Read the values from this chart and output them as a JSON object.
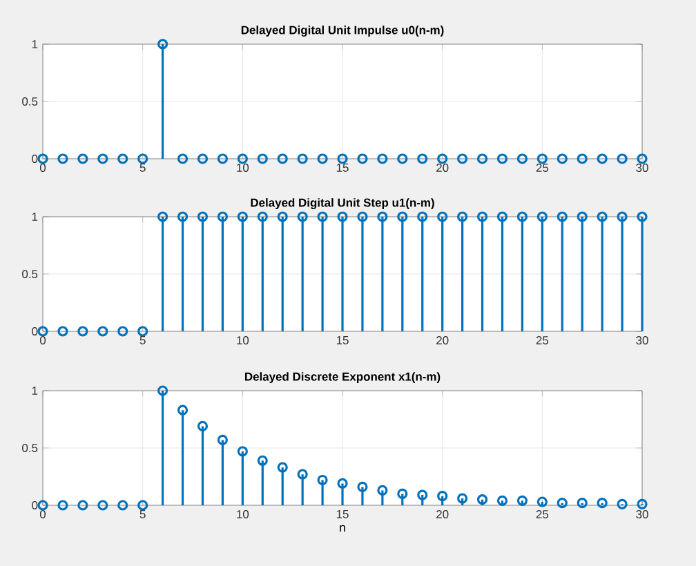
{
  "chart_data": [
    {
      "type": "lollipop",
      "title": "Delayed Digital Unit Impulse u0(n-m)",
      "x": [
        0,
        1,
        2,
        3,
        4,
        5,
        6,
        7,
        8,
        9,
        10,
        11,
        12,
        13,
        14,
        15,
        16,
        17,
        18,
        19,
        20,
        21,
        22,
        23,
        24,
        25,
        26,
        27,
        28,
        29,
        30
      ],
      "values": [
        0,
        0,
        0,
        0,
        0,
        0,
        1,
        0,
        0,
        0,
        0,
        0,
        0,
        0,
        0,
        0,
        0,
        0,
        0,
        0,
        0,
        0,
        0,
        0,
        0,
        0,
        0,
        0,
        0,
        0,
        0
      ],
      "color": "#0072bd",
      "marker": "circle",
      "grid": true,
      "xlim": [
        0,
        30
      ],
      "xticks": [
        0,
        5,
        10,
        15,
        20,
        25,
        30
      ],
      "ylim": [
        0,
        1
      ],
      "yticks": [
        0,
        0.5,
        1
      ]
    },
    {
      "type": "lollipop",
      "title": "Delayed Digital Unit Step u1(n-m)",
      "x": [
        0,
        1,
        2,
        3,
        4,
        5,
        6,
        7,
        8,
        9,
        10,
        11,
        12,
        13,
        14,
        15,
        16,
        17,
        18,
        19,
        20,
        21,
        22,
        23,
        24,
        25,
        26,
        27,
        28,
        29,
        30
      ],
      "values": [
        0,
        0,
        0,
        0,
        0,
        0,
        1,
        1,
        1,
        1,
        1,
        1,
        1,
        1,
        1,
        1,
        1,
        1,
        1,
        1,
        1,
        1,
        1,
        1,
        1,
        1,
        1,
        1,
        1,
        1,
        1
      ],
      "color": "#0072bd",
      "marker": "circle",
      "grid": true,
      "xlim": [
        0,
        30
      ],
      "xticks": [
        0,
        5,
        10,
        15,
        20,
        25,
        30
      ],
      "ylim": [
        0,
        1
      ],
      "yticks": [
        0,
        0.5,
        1
      ]
    },
    {
      "type": "lollipop",
      "title": "Delayed Discrete Exponent x1(n-m)",
      "xlabel": "n",
      "x": [
        0,
        1,
        2,
        3,
        4,
        5,
        6,
        7,
        8,
        9,
        10,
        11,
        12,
        13,
        14,
        15,
        16,
        17,
        18,
        19,
        20,
        21,
        22,
        23,
        24,
        25,
        26,
        27,
        28,
        29,
        30
      ],
      "values": [
        0,
        0,
        0,
        0,
        0,
        0,
        1,
        0.83,
        0.69,
        0.57,
        0.47,
        0.39,
        0.33,
        0.27,
        0.22,
        0.19,
        0.16,
        0.13,
        0.1,
        0.09,
        0.08,
        0.06,
        0.05,
        0.04,
        0.04,
        0.03,
        0.02,
        0.02,
        0.02,
        0.01,
        0.01
      ],
      "color": "#0072bd",
      "marker": "circle",
      "grid": true,
      "xlim": [
        0,
        30
      ],
      "xticks": [
        0,
        5,
        10,
        15,
        20,
        25,
        30
      ],
      "ylim": [
        0,
        1
      ],
      "yticks": [
        0,
        0.5,
        1
      ]
    }
  ]
}
